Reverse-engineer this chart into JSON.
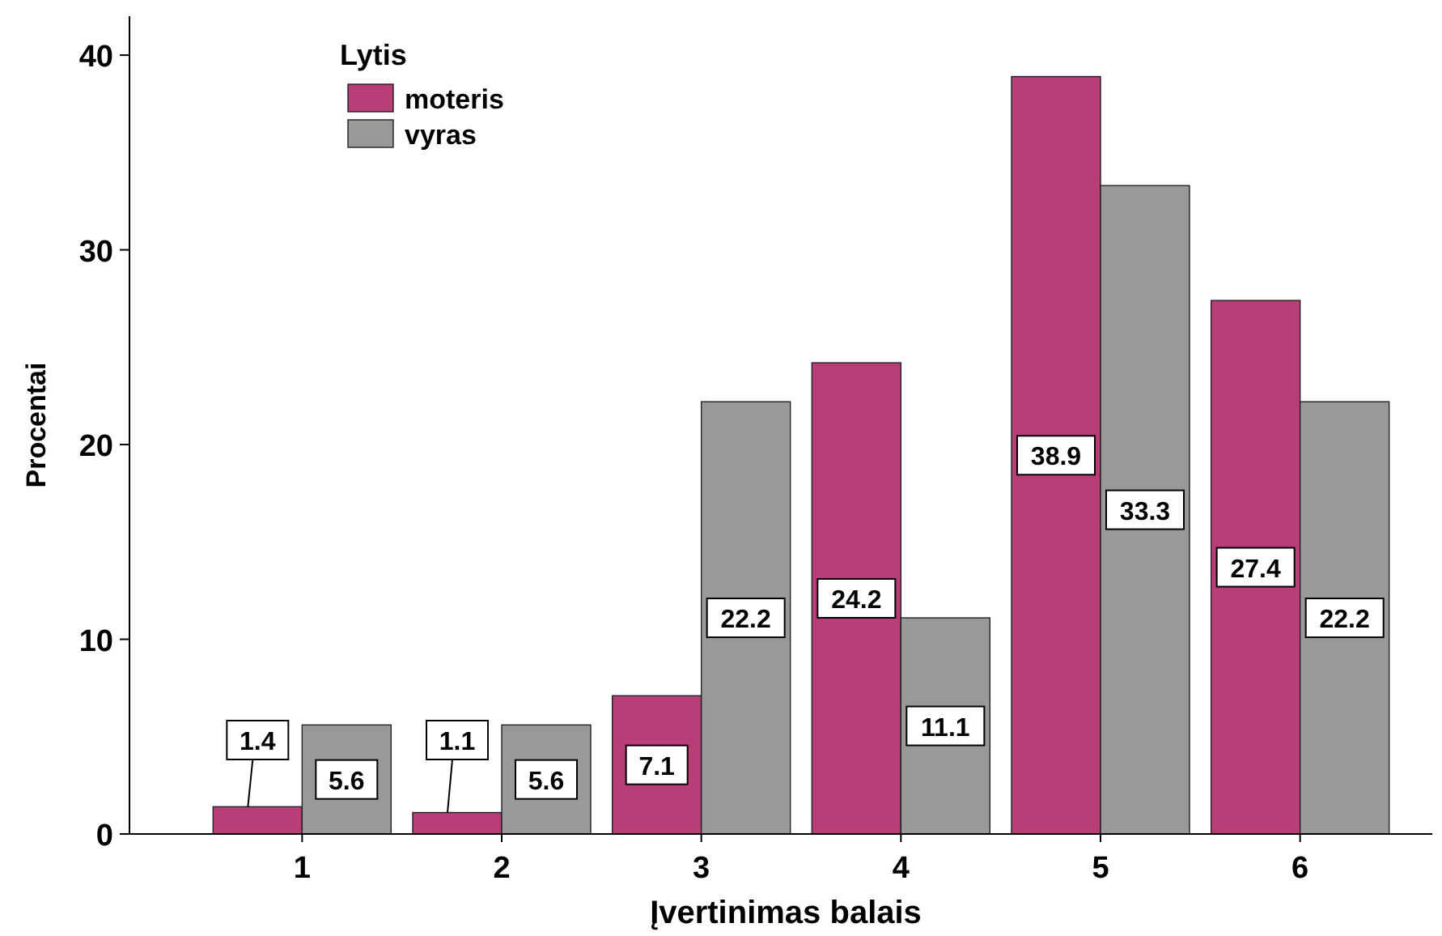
{
  "chart_data": {
    "type": "bar",
    "xlabel": "Įvertinimas balais",
    "ylabel": "Procentai",
    "legend_title": "Lytis",
    "legend": "top left",
    "categories": [
      "1",
      "2",
      "3",
      "4",
      "5",
      "6"
    ],
    "series": [
      {
        "name": "moteris",
        "color": "#b83e78",
        "values": [
          1.4,
          1.1,
          7.1,
          24.2,
          38.9,
          27.4
        ]
      },
      {
        "name": "vyras",
        "color": "#999999",
        "values": [
          5.6,
          5.6,
          22.2,
          11.1,
          33.3,
          22.2
        ]
      }
    ],
    "ylim": [
      0,
      42
    ],
    "yticks": [
      0,
      10,
      20,
      30,
      40
    ],
    "data_labels": true
  }
}
